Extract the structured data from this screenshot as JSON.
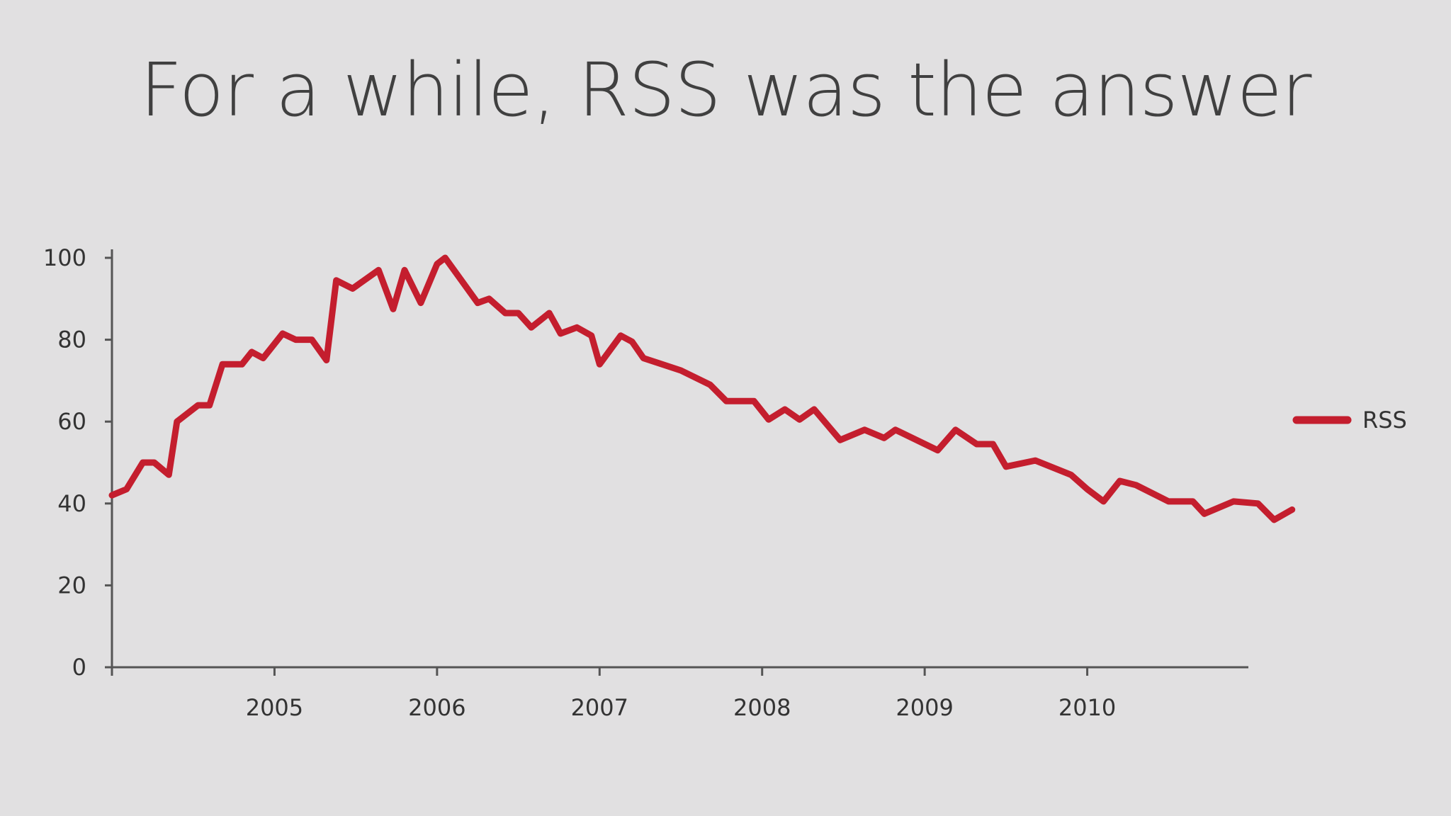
{
  "slide": {
    "title": "For a while, RSS was the answer"
  },
  "colors": {
    "background": "#e1e0e1",
    "series": "#c41e2e",
    "axis": "#555555",
    "text": "#333333"
  },
  "chart_data": {
    "type": "line",
    "title": "For a while, RSS was the answer",
    "xlabel": "",
    "ylabel": "",
    "x_ticks": [
      "2005",
      "2006",
      "2007",
      "2008",
      "2009",
      "2010"
    ],
    "x_tick_values": [
      2005,
      2006,
      2007,
      2008,
      2009,
      2010
    ],
    "xlim": [
      2004.0,
      2011.0
    ],
    "y_ticks": [
      0,
      20,
      40,
      60,
      80,
      100
    ],
    "ylim": [
      0,
      100
    ],
    "grid": false,
    "legend": "right",
    "series": [
      {
        "name": "RSS",
        "color": "#c41e2e",
        "x": [
          2004.0,
          2004.09,
          2004.19,
          2004.26,
          2004.35,
          2004.4,
          2004.53,
          2004.6,
          2004.68,
          2004.8,
          2004.86,
          2004.93,
          2005.05,
          2005.13,
          2005.23,
          2005.32,
          2005.38,
          2005.48,
          2005.64,
          2005.73,
          2005.8,
          2005.9,
          2006.0,
          2006.05,
          2006.25,
          2006.32,
          2006.42,
          2006.5,
          2006.58,
          2006.69,
          2006.76,
          2006.86,
          2006.95,
          2007.0,
          2007.13,
          2007.2,
          2007.27,
          2007.5,
          2007.68,
          2007.78,
          2007.95,
          2008.04,
          2008.14,
          2008.23,
          2008.32,
          2008.48,
          2008.63,
          2008.75,
          2008.82,
          2009.08,
          2009.19,
          2009.32,
          2009.42,
          2009.5,
          2009.68,
          2009.9,
          2010.0,
          2010.1,
          2010.2,
          2010.3,
          2010.5,
          2010.65,
          2010.72,
          2010.9,
          2011.05,
          2011.15,
          2011.26
        ],
        "values": [
          42,
          43.5,
          50,
          50,
          47,
          60,
          64,
          64,
          74,
          74,
          77,
          75.5,
          81.5,
          80,
          80,
          75,
          94.5,
          92.5,
          97,
          87.5,
          97,
          89,
          98.5,
          100,
          89,
          90,
          86.5,
          86.5,
          83,
          86.5,
          81.5,
          83,
          81,
          74,
          81,
          79.5,
          75.5,
          72.5,
          69,
          65,
          65,
          60.5,
          63,
          60.5,
          63,
          55.5,
          58,
          56,
          58,
          53,
          58,
          54.5,
          54.5,
          49,
          50.5,
          47,
          43.5,
          40.5,
          45.5,
          44.5,
          40.5,
          40.5,
          37.5,
          40.5,
          40,
          36,
          38.5
        ]
      }
    ]
  }
}
